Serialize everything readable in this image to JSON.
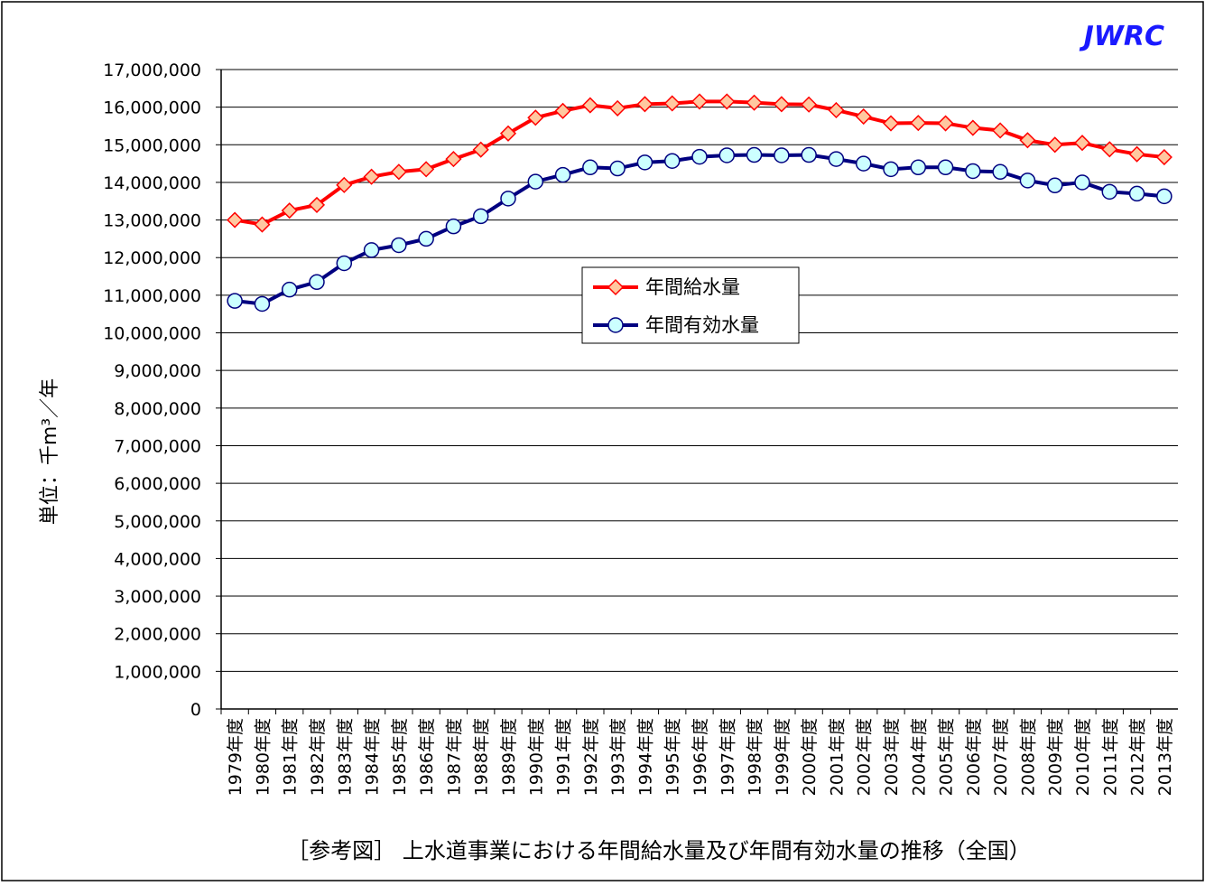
{
  "chart_data": {
    "type": "line",
    "logo": "JWRC",
    "title": "［参考図］ 上水道事業における年間給水量及び年間有効水量の推移（全国）",
    "y_label": "単位：千m³／年",
    "categories": [
      "1979年度",
      "1980年度",
      "1981年度",
      "1982年度",
      "1983年度",
      "1984年度",
      "1985年度",
      "1986年度",
      "1987年度",
      "1988年度",
      "1989年度",
      "1990年度",
      "1991年度",
      "1992年度",
      "1993年度",
      "1994年度",
      "1995年度",
      "1996年度",
      "1997年度",
      "1998年度",
      "1999年度",
      "2000年度",
      "2001年度",
      "2002年度",
      "2003年度",
      "2004年度",
      "2005年度",
      "2006年度",
      "2007年度",
      "2008年度",
      "2009年度",
      "2010年度",
      "2011年度",
      "2012年度",
      "2013年度"
    ],
    "series": [
      {
        "name": "年間給水量",
        "color": "#ff0000",
        "marker": "diamond",
        "marker_fill": "#ffc8a0",
        "values": [
          13000000,
          12880000,
          13250000,
          13400000,
          13930000,
          14150000,
          14280000,
          14350000,
          14620000,
          14870000,
          15300000,
          15720000,
          15900000,
          16050000,
          15970000,
          16080000,
          16100000,
          16150000,
          16150000,
          16120000,
          16080000,
          16070000,
          15920000,
          15750000,
          15570000,
          15580000,
          15570000,
          15450000,
          15380000,
          15120000,
          15000000,
          15050000,
          14880000,
          14750000,
          14670000
        ]
      },
      {
        "name": "年間有効水量",
        "color": "#000080",
        "marker": "circle",
        "marker_fill": "#ccffff",
        "values": [
          10850000,
          10770000,
          11150000,
          11350000,
          11850000,
          12200000,
          12330000,
          12500000,
          12830000,
          13100000,
          13570000,
          14020000,
          14200000,
          14400000,
          14370000,
          14530000,
          14570000,
          14680000,
          14720000,
          14730000,
          14720000,
          14730000,
          14620000,
          14500000,
          14350000,
          14400000,
          14400000,
          14300000,
          14280000,
          14050000,
          13920000,
          14000000,
          13750000,
          13700000,
          13630000
        ]
      }
    ],
    "ylim": [
      0,
      17000000
    ],
    "yticks": [
      0,
      {
        "value": 1000000,
        "label": "1,000,000"
      },
      {
        "value": 2000000,
        "label": "2,000,000"
      },
      {
        "value": 3000000,
        "label": "3,000,000"
      },
      {
        "value": 4000000,
        "label": "4,000,000"
      },
      {
        "value": 5000000,
        "label": "5,000,000"
      },
      {
        "value": 6000000,
        "label": "6,000,000"
      },
      {
        "value": 7000000,
        "label": "7,000,000"
      },
      {
        "value": 8000000,
        "label": "8,000,000"
      },
      {
        "value": 9000000,
        "label": "9,000,000"
      },
      {
        "value": 10000000,
        "label": "10,000,000"
      },
      {
        "value": 11000000,
        "label": "11,000,000"
      },
      {
        "value": 12000000,
        "label": "12,000,000"
      },
      {
        "value": 13000000,
        "label": "13,000,000"
      },
      {
        "value": 14000000,
        "label": "14,000,000"
      },
      {
        "value": 15000000,
        "label": "15,000,000"
      },
      {
        "value": 16000000,
        "label": "16,000,000"
      },
      {
        "value": 17000000,
        "label": "17,000,000"
      }
    ],
    "grid": true,
    "legend": "center"
  }
}
